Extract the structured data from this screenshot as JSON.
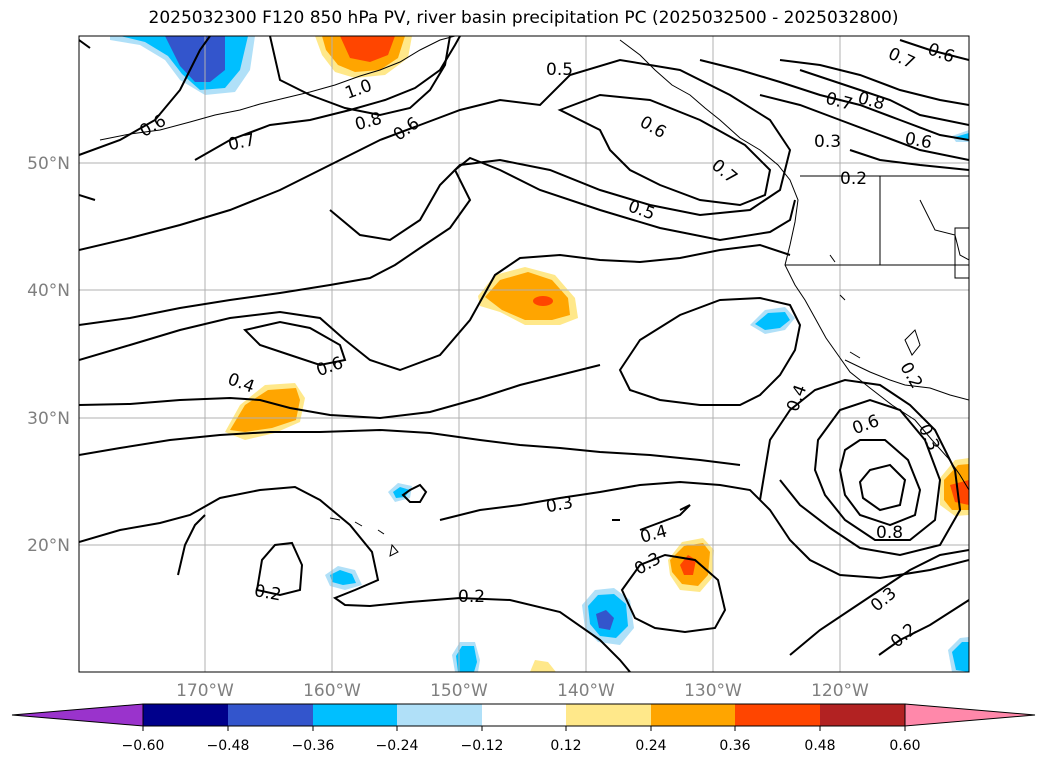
{
  "title": "2025032300 F120 850 hPa PV, river basin precipitation PC (2025032500 - 2025032800)",
  "map": {
    "lat_labels": [
      "50°N",
      "40°N",
      "30°N",
      "20°N"
    ],
    "lon_labels": [
      "170°W",
      "160°W",
      "150°W",
      "140°W",
      "130°W",
      "120°W"
    ],
    "grid_color": "#b0b0b0",
    "contour_labels": [
      {
        "text": "0.6"
      },
      {
        "text": "0.7"
      },
      {
        "text": "1.0"
      },
      {
        "text": "0.8"
      },
      {
        "text": "0.6"
      },
      {
        "text": "0.5"
      },
      {
        "text": "0.6"
      },
      {
        "text": "0.7"
      },
      {
        "text": "0.5"
      },
      {
        "text": "0.7"
      },
      {
        "text": "0.6"
      },
      {
        "text": "0.7"
      },
      {
        "text": "0.8"
      },
      {
        "text": "0.3"
      },
      {
        "text": "0.6"
      },
      {
        "text": "0.2"
      },
      {
        "text": "0.6"
      },
      {
        "text": "0.4"
      },
      {
        "text": "0.4"
      },
      {
        "text": "0.6"
      },
      {
        "text": "0.2"
      },
      {
        "text": "0.3"
      },
      {
        "text": "0.3"
      },
      {
        "text": "0.4"
      },
      {
        "text": "0.3"
      },
      {
        "text": "0.2"
      },
      {
        "text": "0.2"
      },
      {
        "text": "0.8"
      },
      {
        "text": "0.3"
      },
      {
        "text": "0.2"
      }
    ]
  },
  "colorbar": {
    "colors": [
      "#9a33cc",
      "#00008b",
      "#3355cc",
      "#00bfff",
      "#b0e0f8",
      "#ffffff",
      "#ffe88a",
      "#ffa500",
      "#ff4500",
      "#b22222",
      "#ff88aa"
    ],
    "ticks": [
      "−0.60",
      "−0.48",
      "−0.36",
      "−0.24",
      "−0.12",
      "0.12",
      "0.24",
      "0.36",
      "0.48",
      "0.60"
    ]
  }
}
